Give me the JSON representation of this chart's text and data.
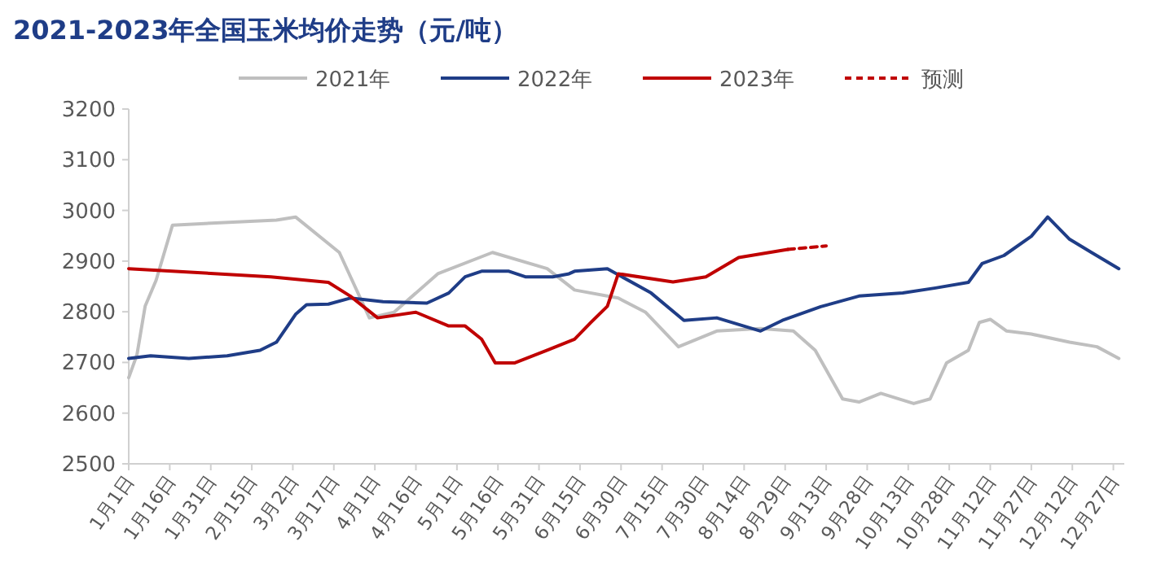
{
  "chart_data": {
    "type": "line",
    "title": "2021-2023年全国玉米均价走势（元/吨）",
    "legend": "top",
    "marker": "none",
    "xlim": [
      "--01-01",
      "--12-31"
    ],
    "xticks": [
      {
        "value": "--01-01",
        "label": "1月1日"
      },
      {
        "value": "--01-16",
        "label": "1月16日"
      },
      {
        "value": "--01-31",
        "label": "1月31日"
      },
      {
        "value": "--02-15",
        "label": "2月15日"
      },
      {
        "value": "--03-02",
        "label": "3月2日"
      },
      {
        "value": "--03-17",
        "label": "3月17日"
      },
      {
        "value": "--04-01",
        "label": "4月1日"
      },
      {
        "value": "--04-16",
        "label": "4月16日"
      },
      {
        "value": "--05-01",
        "label": "5月1日"
      },
      {
        "value": "--05-16",
        "label": "5月16日"
      },
      {
        "value": "--05-31",
        "label": "5月31日"
      },
      {
        "value": "--06-15",
        "label": "6月15日"
      },
      {
        "value": "--06-30",
        "label": "6月30日"
      },
      {
        "value": "--07-15",
        "label": "7月15日"
      },
      {
        "value": "--07-30",
        "label": "7月30日"
      },
      {
        "value": "--08-14",
        "label": "8月14日"
      },
      {
        "value": "--08-29",
        "label": "8月29日"
      },
      {
        "value": "--09-13",
        "label": "9月13日"
      },
      {
        "value": "--09-28",
        "label": "9月28日"
      },
      {
        "value": "--10-13",
        "label": "10月13日"
      },
      {
        "value": "--10-28",
        "label": "10月28日"
      },
      {
        "value": "--11-12",
        "label": "11月12日"
      },
      {
        "value": "--11-27",
        "label": "11月27日"
      },
      {
        "value": "--12-12",
        "label": "12月12日"
      },
      {
        "value": "--12-27",
        "label": "12月27日"
      }
    ],
    "ylim": [
      2500,
      3200
    ],
    "yticks": [
      2500,
      2600,
      2700,
      2800,
      2900,
      3000,
      3100,
      3200
    ],
    "series": [
      {
        "name": "2021年",
        "color": "#bfbfbf",
        "line_style": "solid",
        "x": [
          "--01-01",
          "--01-04",
          "--01-07",
          "--01-11",
          "--01-17",
          "--02-24",
          "--03-03",
          "--03-19",
          "--03-30",
          "--04-08",
          "--04-24",
          "--05-14",
          "--06-03",
          "--06-13",
          "--06-29",
          "--07-09",
          "--07-21",
          "--08-04",
          "--08-20",
          "--09-01",
          "--09-09",
          "--09-19",
          "--09-25",
          "--10-03",
          "--10-15",
          "--10-21",
          "--10-27",
          "--11-04",
          "--11-08",
          "--11-12",
          "--11-18",
          "--11-27",
          "--12-11",
          "--12-21",
          "--12-29"
        ],
        "values": [
          2670,
          2715,
          2811,
          2862,
          2971,
          2981,
          2987,
          2917,
          2788,
          2799,
          2875,
          2917,
          2885,
          2843,
          2827,
          2799,
          2731,
          2762,
          2767,
          2762,
          2724,
          2628,
          2622,
          2639,
          2619,
          2628,
          2699,
          2724,
          2779,
          2785,
          2762,
          2756,
          2740,
          2731,
          2708
        ]
      },
      {
        "name": "2022年",
        "color": "#1f3d87",
        "line_style": "solid",
        "x": [
          "--01-01",
          "--01-09",
          "--01-23",
          "--02-06",
          "--02-18",
          "--02-24",
          "--03-03",
          "--03-07",
          "--03-15",
          "--03-23",
          "--04-04",
          "--04-20",
          "--04-28",
          "--05-04",
          "--05-10",
          "--05-20",
          "--05-26",
          "--06-05",
          "--06-11",
          "--06-13",
          "--06-25",
          "--07-11",
          "--07-23",
          "--08-04",
          "--08-20",
          "--08-28",
          "--09-11",
          "--09-25",
          "--10-11",
          "--10-23",
          "--11-04",
          "--11-09",
          "--11-17",
          "--11-27",
          "--12-03",
          "--12-11",
          "--12-19",
          "--12-29"
        ],
        "values": [
          2708,
          2713,
          2708,
          2713,
          2724,
          2740,
          2795,
          2814,
          2815,
          2827,
          2820,
          2817,
          2837,
          2869,
          2880,
          2880,
          2869,
          2869,
          2875,
          2880,
          2885,
          2837,
          2783,
          2788,
          2762,
          2783,
          2810,
          2831,
          2837,
          2847,
          2858,
          2895,
          2911,
          2949,
          2987,
          2943,
          2917,
          2885
        ]
      },
      {
        "name": "2023年",
        "color": "#c00000",
        "line_style": "solid",
        "x": [
          "--01-01",
          "--02-22",
          "--03-15",
          "--03-23",
          "--04-02",
          "--04-16",
          "--04-28",
          "--05-04",
          "--05-10",
          "--05-15",
          "--05-22",
          "--06-03",
          "--06-13",
          "--06-19",
          "--06-25",
          "--06-29",
          "--07-19",
          "--07-31",
          "--08-12",
          "--08-30"
        ],
        "values": [
          2885,
          2869,
          2858,
          2831,
          2788,
          2799,
          2772,
          2772,
          2746,
          2699,
          2699,
          2724,
          2746,
          2779,
          2811,
          2875,
          2859,
          2869,
          2907,
          2923
        ]
      },
      {
        "name": "预测",
        "color": "#c00000",
        "line_style": "dashed",
        "x": [
          "--08-30",
          "--09-13"
        ],
        "values": [
          2923,
          2930
        ]
      }
    ]
  }
}
